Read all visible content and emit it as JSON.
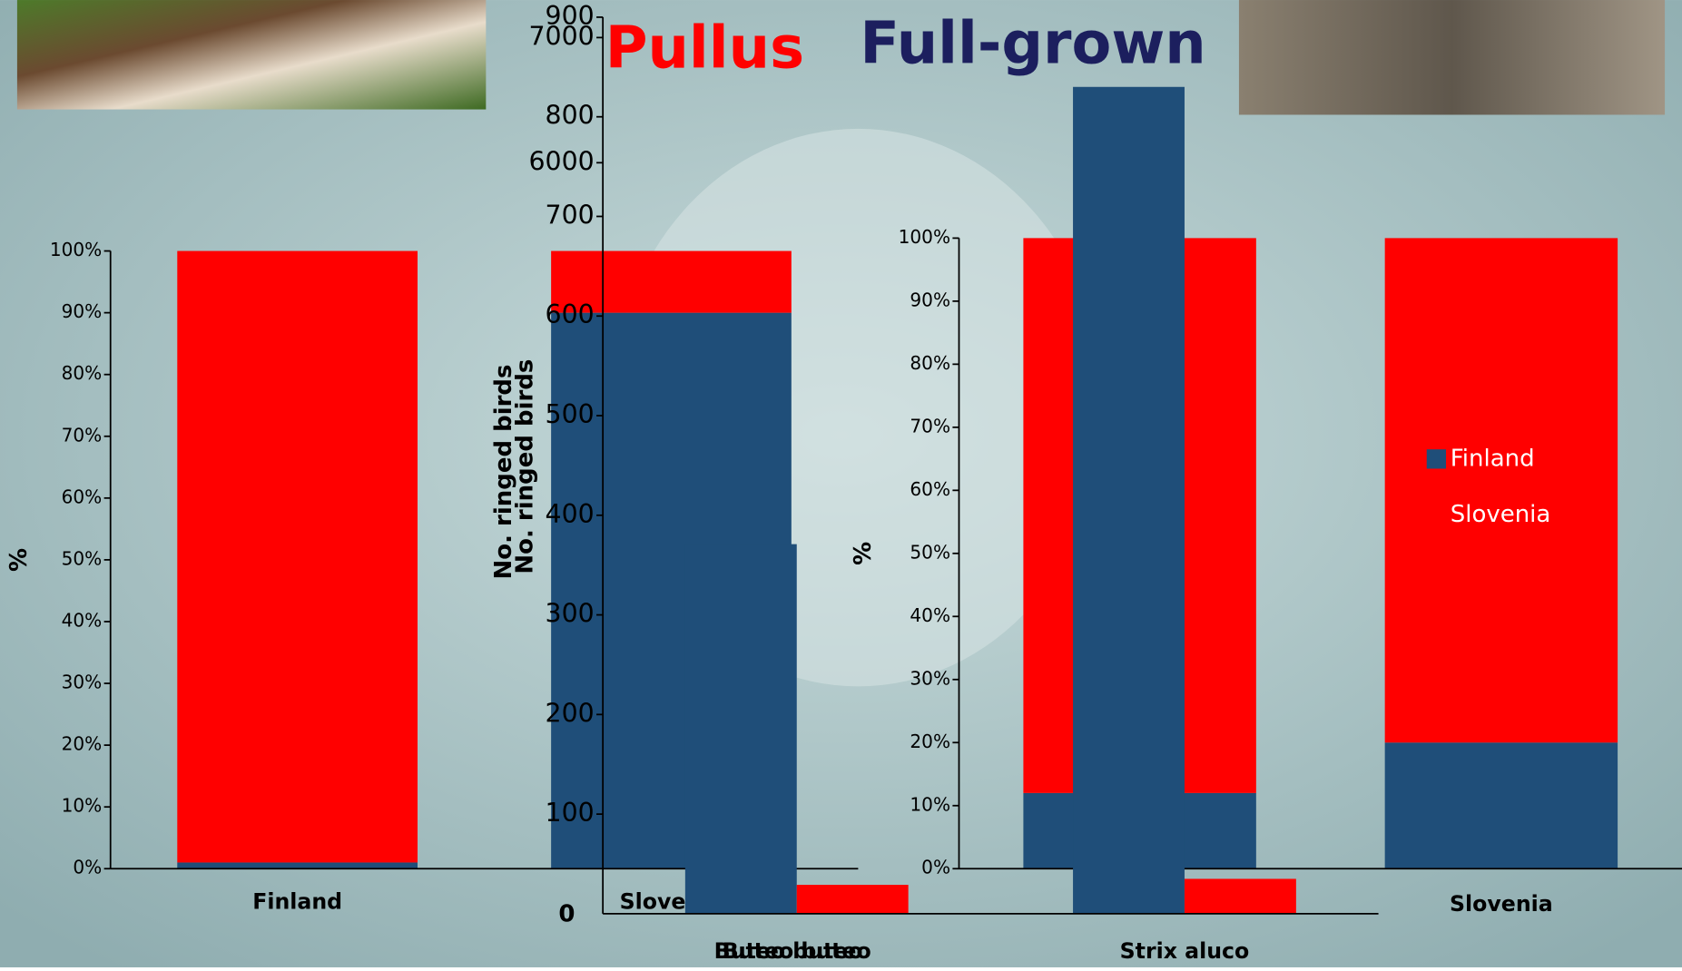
{
  "chart_data": [
    {
      "type": "bar",
      "stacked": true,
      "y_label": "%",
      "categories": [
        "Finland",
        "Slovenia"
      ],
      "series": [
        {
          "name": "Finland",
          "color": "#1f4e79",
          "values": [
            1,
            90
          ]
        },
        {
          "name": "Slovenia",
          "color": "#ff0000",
          "values": [
            99,
            10
          ]
        }
      ],
      "ylim": [
        0,
        100
      ],
      "yticks": [
        {
          "value": 0,
          "label": "0%"
        },
        {
          "value": 10,
          "label": "10%"
        },
        {
          "value": 20,
          "label": "20%"
        },
        {
          "value": 30,
          "label": "30%"
        },
        {
          "value": 40,
          "label": "40%"
        },
        {
          "value": 50,
          "label": "50%"
        },
        {
          "value": 60,
          "label": "60%"
        },
        {
          "value": 70,
          "label": "70%"
        },
        {
          "value": 80,
          "label": "80%"
        },
        {
          "value": 90,
          "label": "90%"
        },
        {
          "value": 100,
          "label": "100%"
        }
      ]
    },
    {
      "type": "bar",
      "stacked": true,
      "y_label": "%",
      "categories": [
        null,
        "Slovenia"
      ],
      "series": [
        {
          "name": "Finland",
          "color": "#1f4e79",
          "values": [
            12,
            20
          ]
        },
        {
          "name": "Slovenia",
          "color": "#ff0000",
          "values": [
            88,
            80
          ]
        }
      ],
      "ylim": [
        0,
        100
      ],
      "legend": "right",
      "yticks": [
        {
          "value": 0,
          "label": "0%"
        },
        {
          "value": 10,
          "label": "10%"
        },
        {
          "value": 20,
          "label": "20%"
        },
        {
          "value": 30,
          "label": "30%"
        },
        {
          "value": 40,
          "label": "40%"
        },
        {
          "value": 50,
          "label": "50%"
        },
        {
          "value": 60,
          "label": "60%"
        },
        {
          "value": 70,
          "label": "70%"
        },
        {
          "value": 80,
          "label": "80%"
        },
        {
          "value": 90,
          "label": "90%"
        },
        {
          "value": 100,
          "label": "100%"
        }
      ]
    },
    {
      "type": "bar",
      "stacked": false,
      "title": "Pullus",
      "title_color": "#ff0000",
      "y_label": "No. ringed birds",
      "categories": [
        "Buteo buteo",
        "Strix aluco"
      ],
      "series": [
        {
          "name": "Finland",
          "color": "#1f4e79",
          "values": [
            371,
            830
          ]
        },
        {
          "name": "Slovenia",
          "color": "#ff0000",
          "values": [
            29,
            35
          ]
        }
      ],
      "ylim": [
        0,
        900
      ],
      "yticks": [
        0,
        100,
        200,
        300,
        400,
        500,
        600,
        700,
        800,
        900
      ]
    },
    {
      "type": "axis",
      "title": "Full-grown",
      "title_color": "#1c1f5e",
      "y_label": "No. ringed birds",
      "categories": [
        "Buteo buteo"
      ],
      "ylim": [
        0,
        7000
      ],
      "yticks": [
        6000,
        7000
      ]
    }
  ]
}
